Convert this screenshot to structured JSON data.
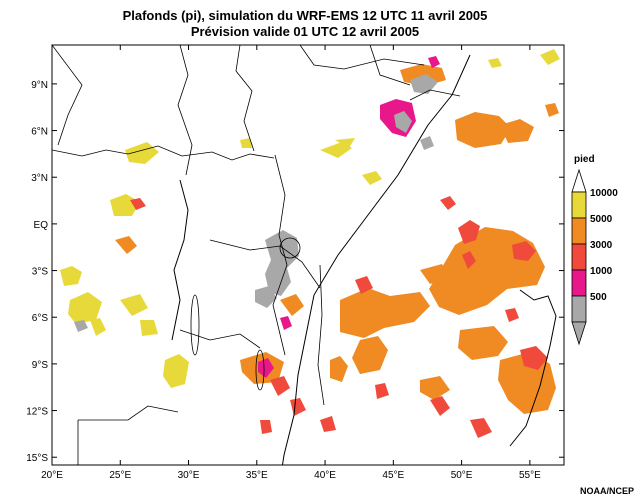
{
  "title": {
    "line1": "Plafonds (pi), simulation du WRF-EMS 12 UTC 11 avril 2005",
    "line2": "Prévision valide 01 UTC 12 avril 2005"
  },
  "map": {
    "lon_range": [
      20,
      57.5
    ],
    "lat_range": [
      -15.5,
      11.5
    ],
    "lat_ticks": [
      {
        "value": 9,
        "label": "9°N"
      },
      {
        "value": 6,
        "label": "6°N"
      },
      {
        "value": 3,
        "label": "3°N"
      },
      {
        "value": 0,
        "label": "EQ"
      },
      {
        "value": -3,
        "label": "3°S"
      },
      {
        "value": -6,
        "label": "6°S"
      },
      {
        "value": -9,
        "label": "9°S"
      },
      {
        "value": -12,
        "label": "12°S"
      },
      {
        "value": -15,
        "label": "15°S"
      }
    ],
    "lon_ticks": [
      {
        "value": 20,
        "label": "20°E"
      },
      {
        "value": 25,
        "label": "25°E"
      },
      {
        "value": 30,
        "label": "30°E"
      },
      {
        "value": 35,
        "label": "35°E"
      },
      {
        "value": 40,
        "label": "40°E"
      },
      {
        "value": 45,
        "label": "45°E"
      },
      {
        "value": 50,
        "label": "50°E"
      },
      {
        "value": 55,
        "label": "55°E"
      }
    ]
  },
  "legend": {
    "title": "pied",
    "entries": [
      {
        "label": "10000",
        "color": "#e8d93a"
      },
      {
        "label": "5000",
        "color": "#f08a22"
      },
      {
        "label": "3000",
        "color": "#f04a3c"
      },
      {
        "label": "1000",
        "color": "#e8188a"
      },
      {
        "label": "500",
        "color": "#a8a8a8"
      }
    ],
    "top_arrow_color": "#ffffff",
    "bottom_arrow_color": "#a8a8a8"
  },
  "credit": "NOAA/NCEP"
}
